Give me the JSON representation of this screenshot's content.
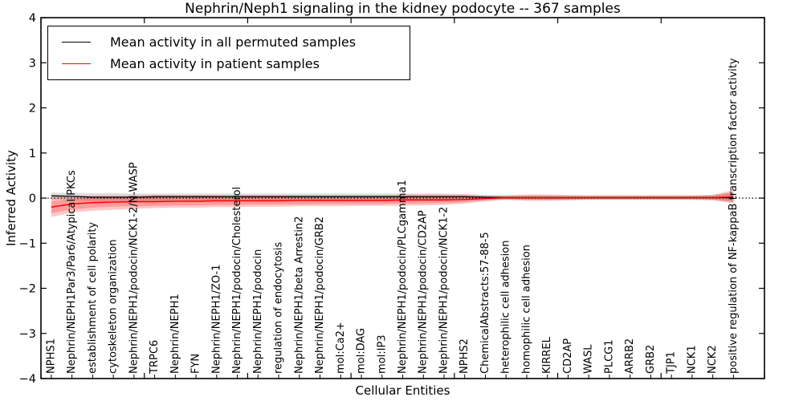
{
  "figure": {
    "title": "Nephrin/Neph1 signaling in the kidney podocyte -- 367 samples",
    "xlabel": "Cellular Entities",
    "ylabel": "Inferred Activity",
    "legend": [
      {
        "label": "Mean activity in all permuted samples",
        "color": "#000000"
      },
      {
        "label": "Mean activity in patient samples",
        "color": "#ff0000"
      }
    ]
  },
  "chart_data": {
    "type": "line",
    "title": "Nephrin/Neph1 signaling in the kidney podocyte -- 367 samples",
    "xlabel": "Cellular Entities",
    "ylabel": "Inferred Activity",
    "ylim": [
      -4,
      4
    ],
    "yticks": [
      -4,
      -3,
      -2,
      -1,
      0,
      1,
      2,
      3,
      4
    ],
    "ytick_labels": [
      "−4",
      "−3",
      "−2",
      "−1",
      "0",
      "1",
      "2",
      "3",
      "4"
    ],
    "x_units": 35,
    "x_major_tick_units": [
      0,
      5,
      10,
      15,
      20,
      25,
      30,
      35
    ],
    "grid": false,
    "legend_position": "upper left",
    "zero_line": {
      "y": 0,
      "style": "dotted",
      "color": "#000000"
    },
    "categories": [
      "NPHS1",
      "Nephrin/NEPH1Par3/Par6/Atypical PKCs",
      "establishment of cell polarity",
      "cytoskeleton organization",
      "Nephrin/NEPH1/podocin/NCK1-2/N-WASP",
      "TRPC6",
      "Nephrin/NEPH1",
      "FYN",
      "Nephrin/NEPH1/ZO-1",
      "Nephrin/NEPH1/podocin/Cholesterol",
      "Nephrin/NEPH1/podocin",
      "regulation of endocytosis",
      "Nephrin/NEPH1/beta Arrestin2",
      "Nephrin/NEPH1/podocin/GRB2",
      "mol:Ca2+",
      "mol:DAG",
      "mol:IP3",
      "Nephrin/NEPH1/podocin/PLCgamma1",
      "Nephrin/NEPH1/podocin/CD2AP",
      "Nephrin/NEPH1/podocin/NCK1-2",
      "NPHS2",
      "ChemicalAbstracts:57-88-5",
      "heterophilic cell adhesion",
      "homophilic cell adhesion",
      "KIRREL",
      "CD2AP",
      "WASL",
      "PLCG1",
      "ARRB2",
      "GRB2",
      "TJP1",
      "NCK1",
      "NCK2",
      "positive regulation of NF-kappaB transcription factor activity"
    ],
    "series": [
      {
        "name": "Mean activity in all permuted samples",
        "color": "#000000",
        "line_width": 1.3,
        "values": [
          0.05,
          0.04,
          0.02,
          0.02,
          0.02,
          0.03,
          0.03,
          0.03,
          0.03,
          0.03,
          0.03,
          0.03,
          0.03,
          0.03,
          0.03,
          0.03,
          0.03,
          0.03,
          0.03,
          0.03,
          0.03,
          0.02,
          0.01,
          0.01,
          0.01,
          0.01,
          0.01,
          0.01,
          0.01,
          0.01,
          0.01,
          0.01,
          0.01,
          0.01
        ],
        "band_low": [
          -0.03,
          -0.05,
          -0.07,
          -0.08,
          -0.08,
          -0.07,
          -0.07,
          -0.07,
          -0.07,
          -0.07,
          -0.07,
          -0.07,
          -0.07,
          -0.07,
          -0.07,
          -0.07,
          -0.07,
          -0.07,
          -0.07,
          -0.07,
          -0.06,
          -0.04,
          -0.03,
          -0.03,
          -0.04,
          -0.04,
          -0.03,
          -0.03,
          -0.03,
          -0.03,
          -0.03,
          -0.03,
          -0.04,
          -0.1
        ],
        "band_high": [
          0.12,
          0.12,
          0.11,
          0.11,
          0.1,
          0.1,
          0.1,
          0.1,
          0.1,
          0.1,
          0.1,
          0.1,
          0.1,
          0.1,
          0.1,
          0.1,
          0.1,
          0.1,
          0.1,
          0.1,
          0.09,
          0.07,
          0.06,
          0.06,
          0.06,
          0.06,
          0.06,
          0.06,
          0.06,
          0.06,
          0.06,
          0.06,
          0.07,
          0.13
        ],
        "band_color": "rgba(0,0,0,0.13)"
      },
      {
        "name": "Mean activity in patient samples",
        "color": "#ff0000",
        "line_width": 1.5,
        "values": [
          -0.2,
          -0.13,
          -0.1,
          -0.09,
          -0.08,
          -0.08,
          -0.07,
          -0.07,
          -0.06,
          -0.06,
          -0.06,
          -0.06,
          -0.05,
          -0.05,
          -0.05,
          -0.05,
          -0.05,
          -0.04,
          -0.04,
          -0.04,
          -0.03,
          -0.01,
          0.01,
          0.01,
          0.01,
          0.01,
          0.01,
          0.01,
          0.01,
          0.01,
          0.01,
          0.01,
          0.01,
          0.03
        ],
        "band_low": [
          -0.42,
          -0.32,
          -0.28,
          -0.26,
          -0.24,
          -0.22,
          -0.21,
          -0.21,
          -0.2,
          -0.2,
          -0.19,
          -0.19,
          -0.18,
          -0.18,
          -0.18,
          -0.17,
          -0.17,
          -0.17,
          -0.16,
          -0.15,
          -0.12,
          -0.07,
          -0.04,
          -0.06,
          -0.06,
          -0.05,
          -0.04,
          -0.04,
          -0.04,
          -0.04,
          -0.04,
          -0.04,
          -0.05,
          -0.11
        ],
        "band_high": [
          0.03,
          0.05,
          0.06,
          0.06,
          0.06,
          0.07,
          0.07,
          0.07,
          0.07,
          0.07,
          0.07,
          0.07,
          0.07,
          0.07,
          0.07,
          0.07,
          0.07,
          0.08,
          0.08,
          0.08,
          0.08,
          0.06,
          0.06,
          0.08,
          0.08,
          0.07,
          0.06,
          0.06,
          0.06,
          0.06,
          0.06,
          0.06,
          0.07,
          0.18
        ],
        "inner_band_low": [
          -0.33,
          -0.25,
          -0.21,
          -0.19,
          -0.18,
          -0.17,
          -0.16,
          -0.16,
          -0.15,
          -0.15,
          -0.14,
          -0.14,
          -0.14,
          -0.13,
          -0.13,
          -0.13,
          -0.13,
          -0.12,
          -0.12,
          -0.11,
          -0.09,
          -0.05,
          -0.02,
          -0.04,
          -0.04,
          -0.03,
          -0.02,
          -0.02,
          -0.02,
          -0.02,
          -0.02,
          -0.02,
          -0.03,
          -0.07
        ],
        "inner_band_high": [
          -0.07,
          -0.02,
          0.01,
          0.02,
          0.02,
          0.02,
          0.03,
          0.03,
          0.03,
          0.03,
          0.03,
          0.03,
          0.03,
          0.03,
          0.03,
          0.03,
          0.03,
          0.04,
          0.04,
          0.04,
          0.04,
          0.03,
          0.04,
          0.05,
          0.05,
          0.04,
          0.04,
          0.04,
          0.04,
          0.04,
          0.04,
          0.04,
          0.05,
          0.12
        ],
        "band_color": "rgba(255,0,0,0.22)"
      }
    ]
  }
}
